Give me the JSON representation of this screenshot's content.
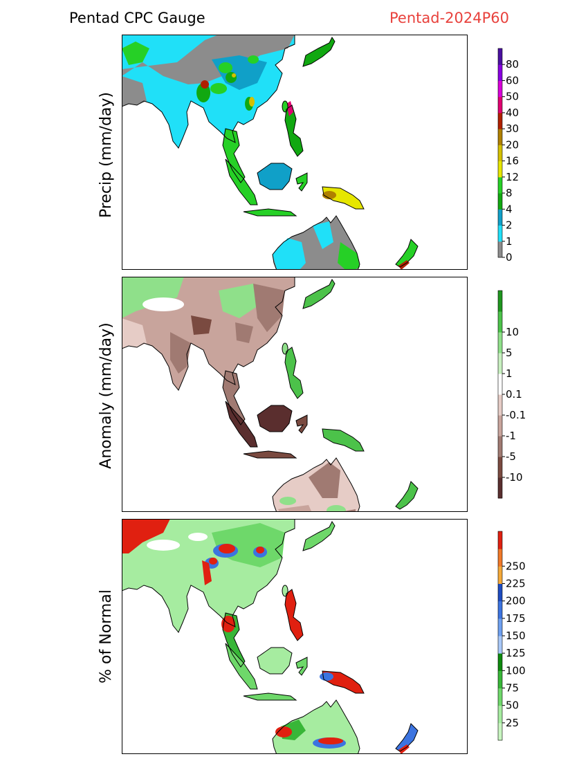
{
  "header": {
    "title_left": "Pentad CPC Gauge",
    "title_right": "Pentad-2024P60",
    "title_right_color": "#e8413c"
  },
  "chart_data": [
    {
      "type": "heatmap",
      "panel": "precip",
      "ylabel": "Precip (mm/day)",
      "legend_placement": "right",
      "colorbar": {
        "colors": [
          "#8c8c8c",
          "#20e0f8",
          "#10a0c8",
          "#11a811",
          "#26d026",
          "#e6e600",
          "#d4c000",
          "#b08000",
          "#b02000",
          "#e00070",
          "#d800d8",
          "#8800e0",
          "#4a10a0"
        ],
        "ticks": [
          "0",
          "1",
          "2",
          "4",
          "8",
          "12",
          "16",
          "20",
          "30",
          "40",
          "50",
          "60",
          "80"
        ]
      }
    },
    {
      "type": "heatmap",
      "panel": "anomaly",
      "ylabel": "Anomaly (mm/day)",
      "legend_placement": "right",
      "colorbar": {
        "colors": [
          "#5a2e2e",
          "#7a4a40",
          "#a07a72",
          "#c8a49c",
          "#e6ccc6",
          "#ffffff",
          "#c8f0c0",
          "#8fe08a",
          "#4cc24a",
          "#1f961f"
        ],
        "ticks": [
          "-10",
          "-5",
          "-1",
          "-0.1",
          "0.1",
          "1",
          "5",
          "10"
        ]
      }
    },
    {
      "type": "heatmap",
      "panel": "percent_normal",
      "ylabel": "% of Normal",
      "legend_placement": "right",
      "colorbar": {
        "colors": [
          "#c8f5c0",
          "#a6eca0",
          "#6ed86a",
          "#38b638",
          "#0e8a0e",
          "#a8c8f8",
          "#6ea0f0",
          "#3c74e0",
          "#1e4cc0",
          "#f4a838",
          "#f07828",
          "#e02010"
        ],
        "ticks": [
          "25",
          "50",
          "75",
          "100",
          "125",
          "150",
          "175",
          "200",
          "225",
          "250"
        ]
      }
    }
  ]
}
